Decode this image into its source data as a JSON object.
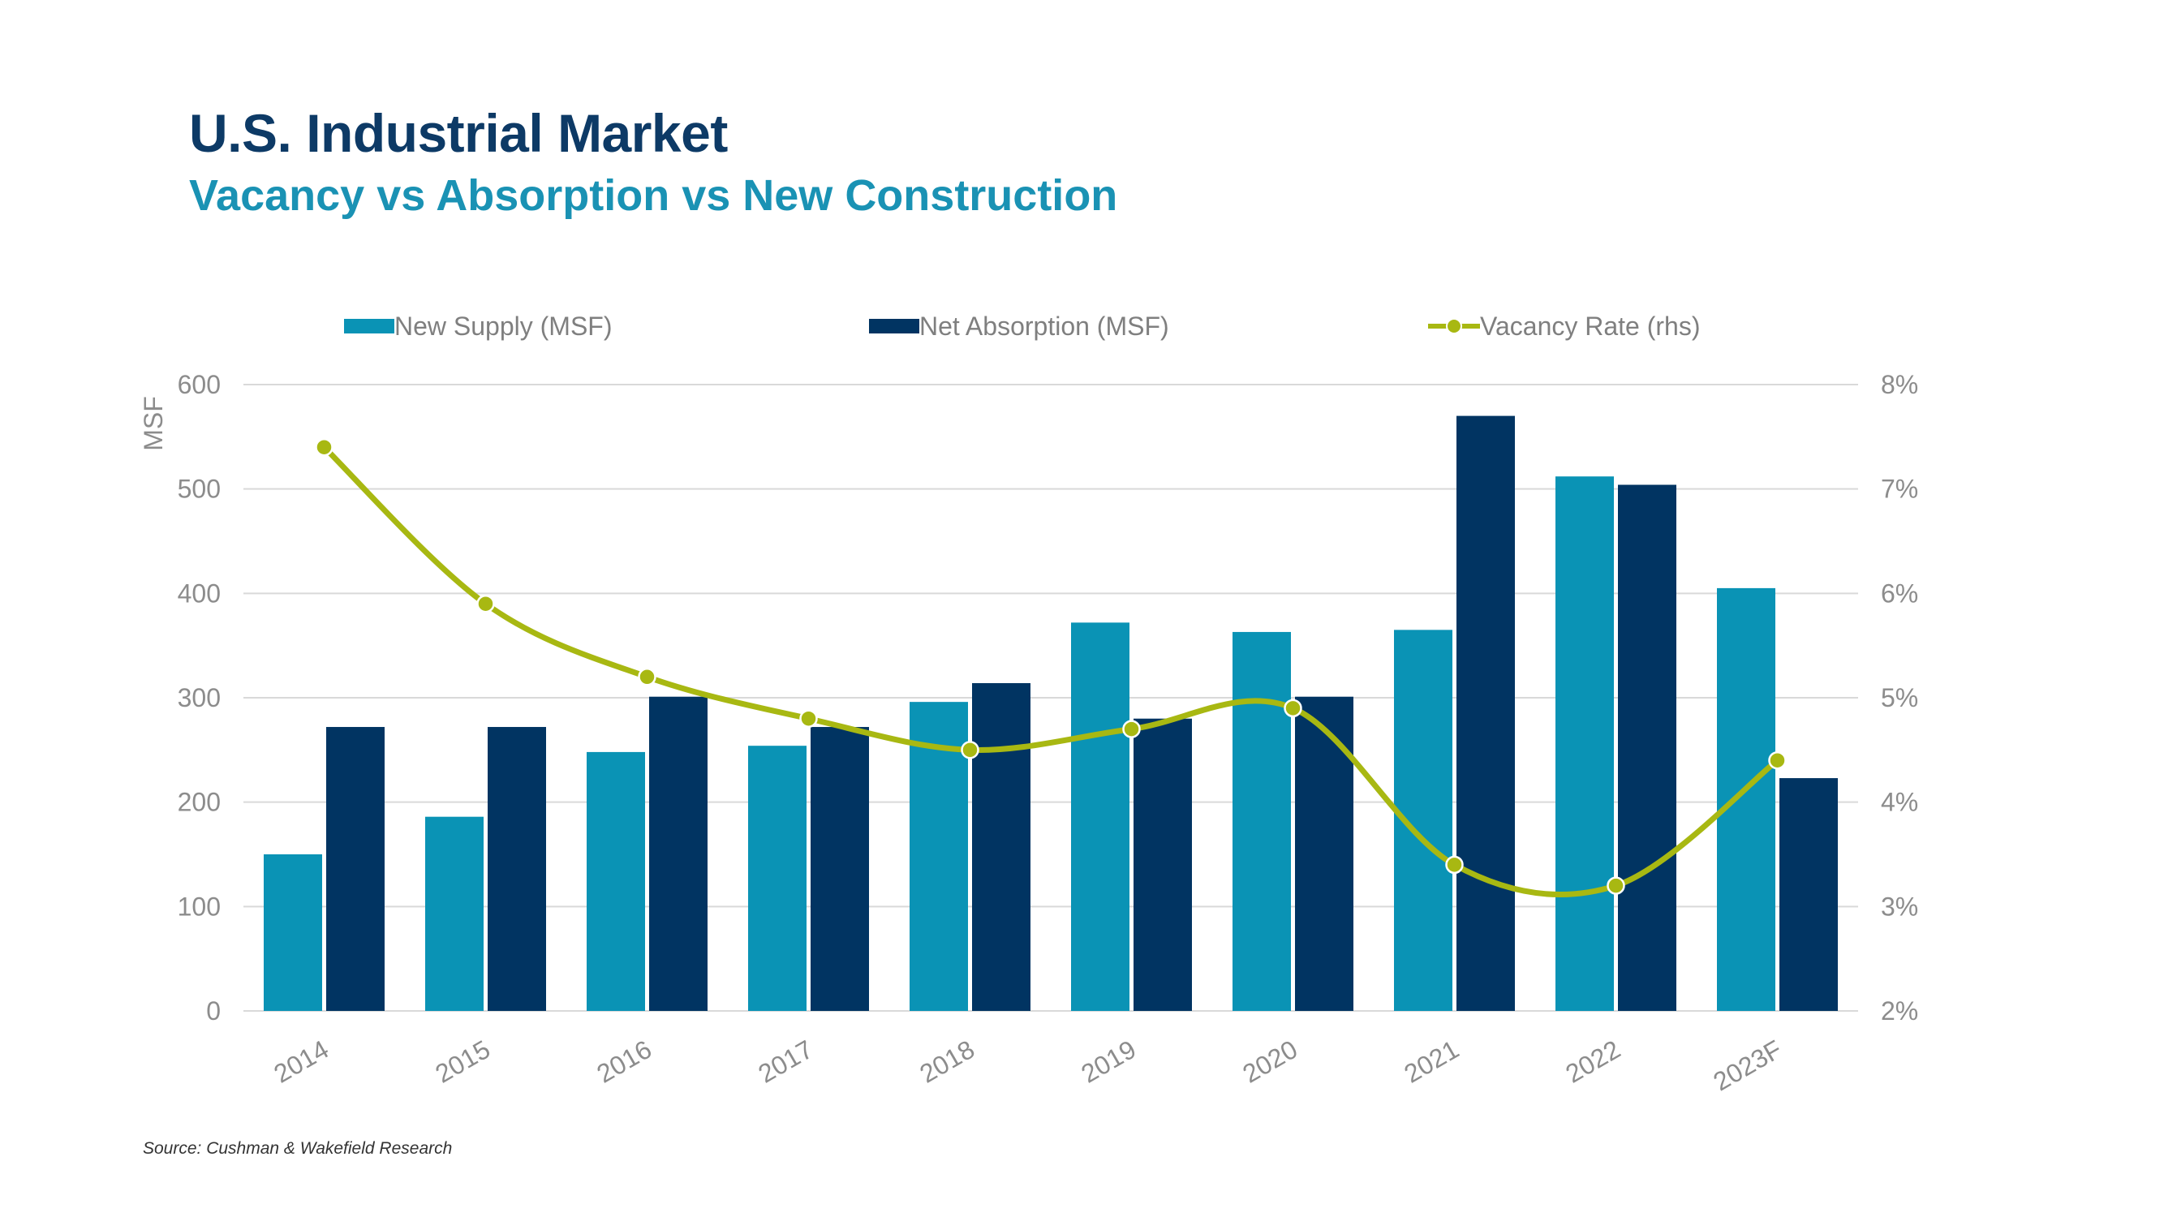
{
  "header": {
    "title": "U.S. Industrial Market",
    "subtitle": "Vacancy vs Absorption vs New Construction"
  },
  "footer": {
    "source": "Source: Cushman & Wakefield Research"
  },
  "colors": {
    "new_supply": "#0a93b5",
    "net_absorption": "#013462",
    "vacancy": "#a8b812",
    "grid": "#d9d9d9"
  },
  "chart_data": {
    "type": "bar",
    "title": "U.S. Industrial Market",
    "subtitle": "Vacancy vs Absorption vs New Construction",
    "categories": [
      "2014",
      "2015",
      "2016",
      "2017",
      "2018",
      "2019",
      "2020",
      "2021",
      "2022",
      "2023F"
    ],
    "series": [
      {
        "name": "New Supply (MSF)",
        "type": "bar",
        "axis": "left",
        "values": [
          150,
          186,
          248,
          254,
          296,
          372,
          363,
          365,
          512,
          405
        ]
      },
      {
        "name": "Net Absorption (MSF)",
        "type": "bar",
        "axis": "left",
        "values": [
          272,
          272,
          301,
          272,
          314,
          280,
          301,
          570,
          504,
          223
        ]
      },
      {
        "name": "Vacancy Rate (rhs)",
        "type": "line",
        "axis": "right",
        "unit": "%",
        "values": [
          7.4,
          5.9,
          5.2,
          4.8,
          4.5,
          4.7,
          4.9,
          3.4,
          3.2,
          4.4
        ]
      }
    ],
    "ylabel": "MSF",
    "ylim": [
      0,
      600
    ],
    "yticks": [
      "0",
      "100",
      "200",
      "300",
      "400",
      "500",
      "600"
    ],
    "y2lim": [
      2,
      8
    ],
    "y2ticks": [
      "2%",
      "3%",
      "4%",
      "5%",
      "6%",
      "7%",
      "8%"
    ],
    "grid": true,
    "legend_position": "top"
  }
}
